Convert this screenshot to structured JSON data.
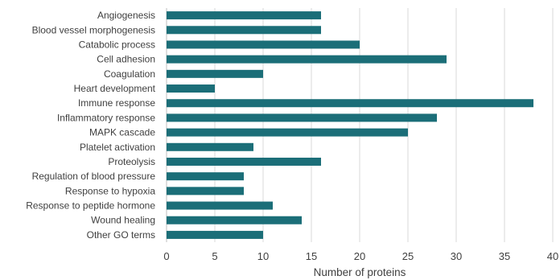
{
  "chart_data": {
    "type": "bar",
    "orientation": "horizontal",
    "categories": [
      "Angiogenesis",
      "Blood vessel morphogenesis",
      "Catabolic process",
      "Cell adhesion",
      "Coagulation",
      "Heart development",
      "Immune response",
      "Inflammatory response",
      "MAPK cascade",
      "Platelet activation",
      "Proteolysis",
      "Regulation of blood pressure",
      "Response to hypoxia",
      "Response to peptide hormone",
      "Wound healing",
      "Other GO terms"
    ],
    "values": [
      16,
      16,
      20,
      29,
      10,
      5,
      38,
      28,
      25,
      9,
      16,
      8,
      8,
      11,
      14,
      10
    ],
    "xlabel": "Number of proteins",
    "ylabel": "",
    "xlim": [
      0,
      40
    ],
    "xticks": [
      0,
      5,
      10,
      15,
      20,
      25,
      30,
      35,
      40
    ],
    "grid": "vertical",
    "legend": "none",
    "bar_color": "#1b6e78"
  }
}
